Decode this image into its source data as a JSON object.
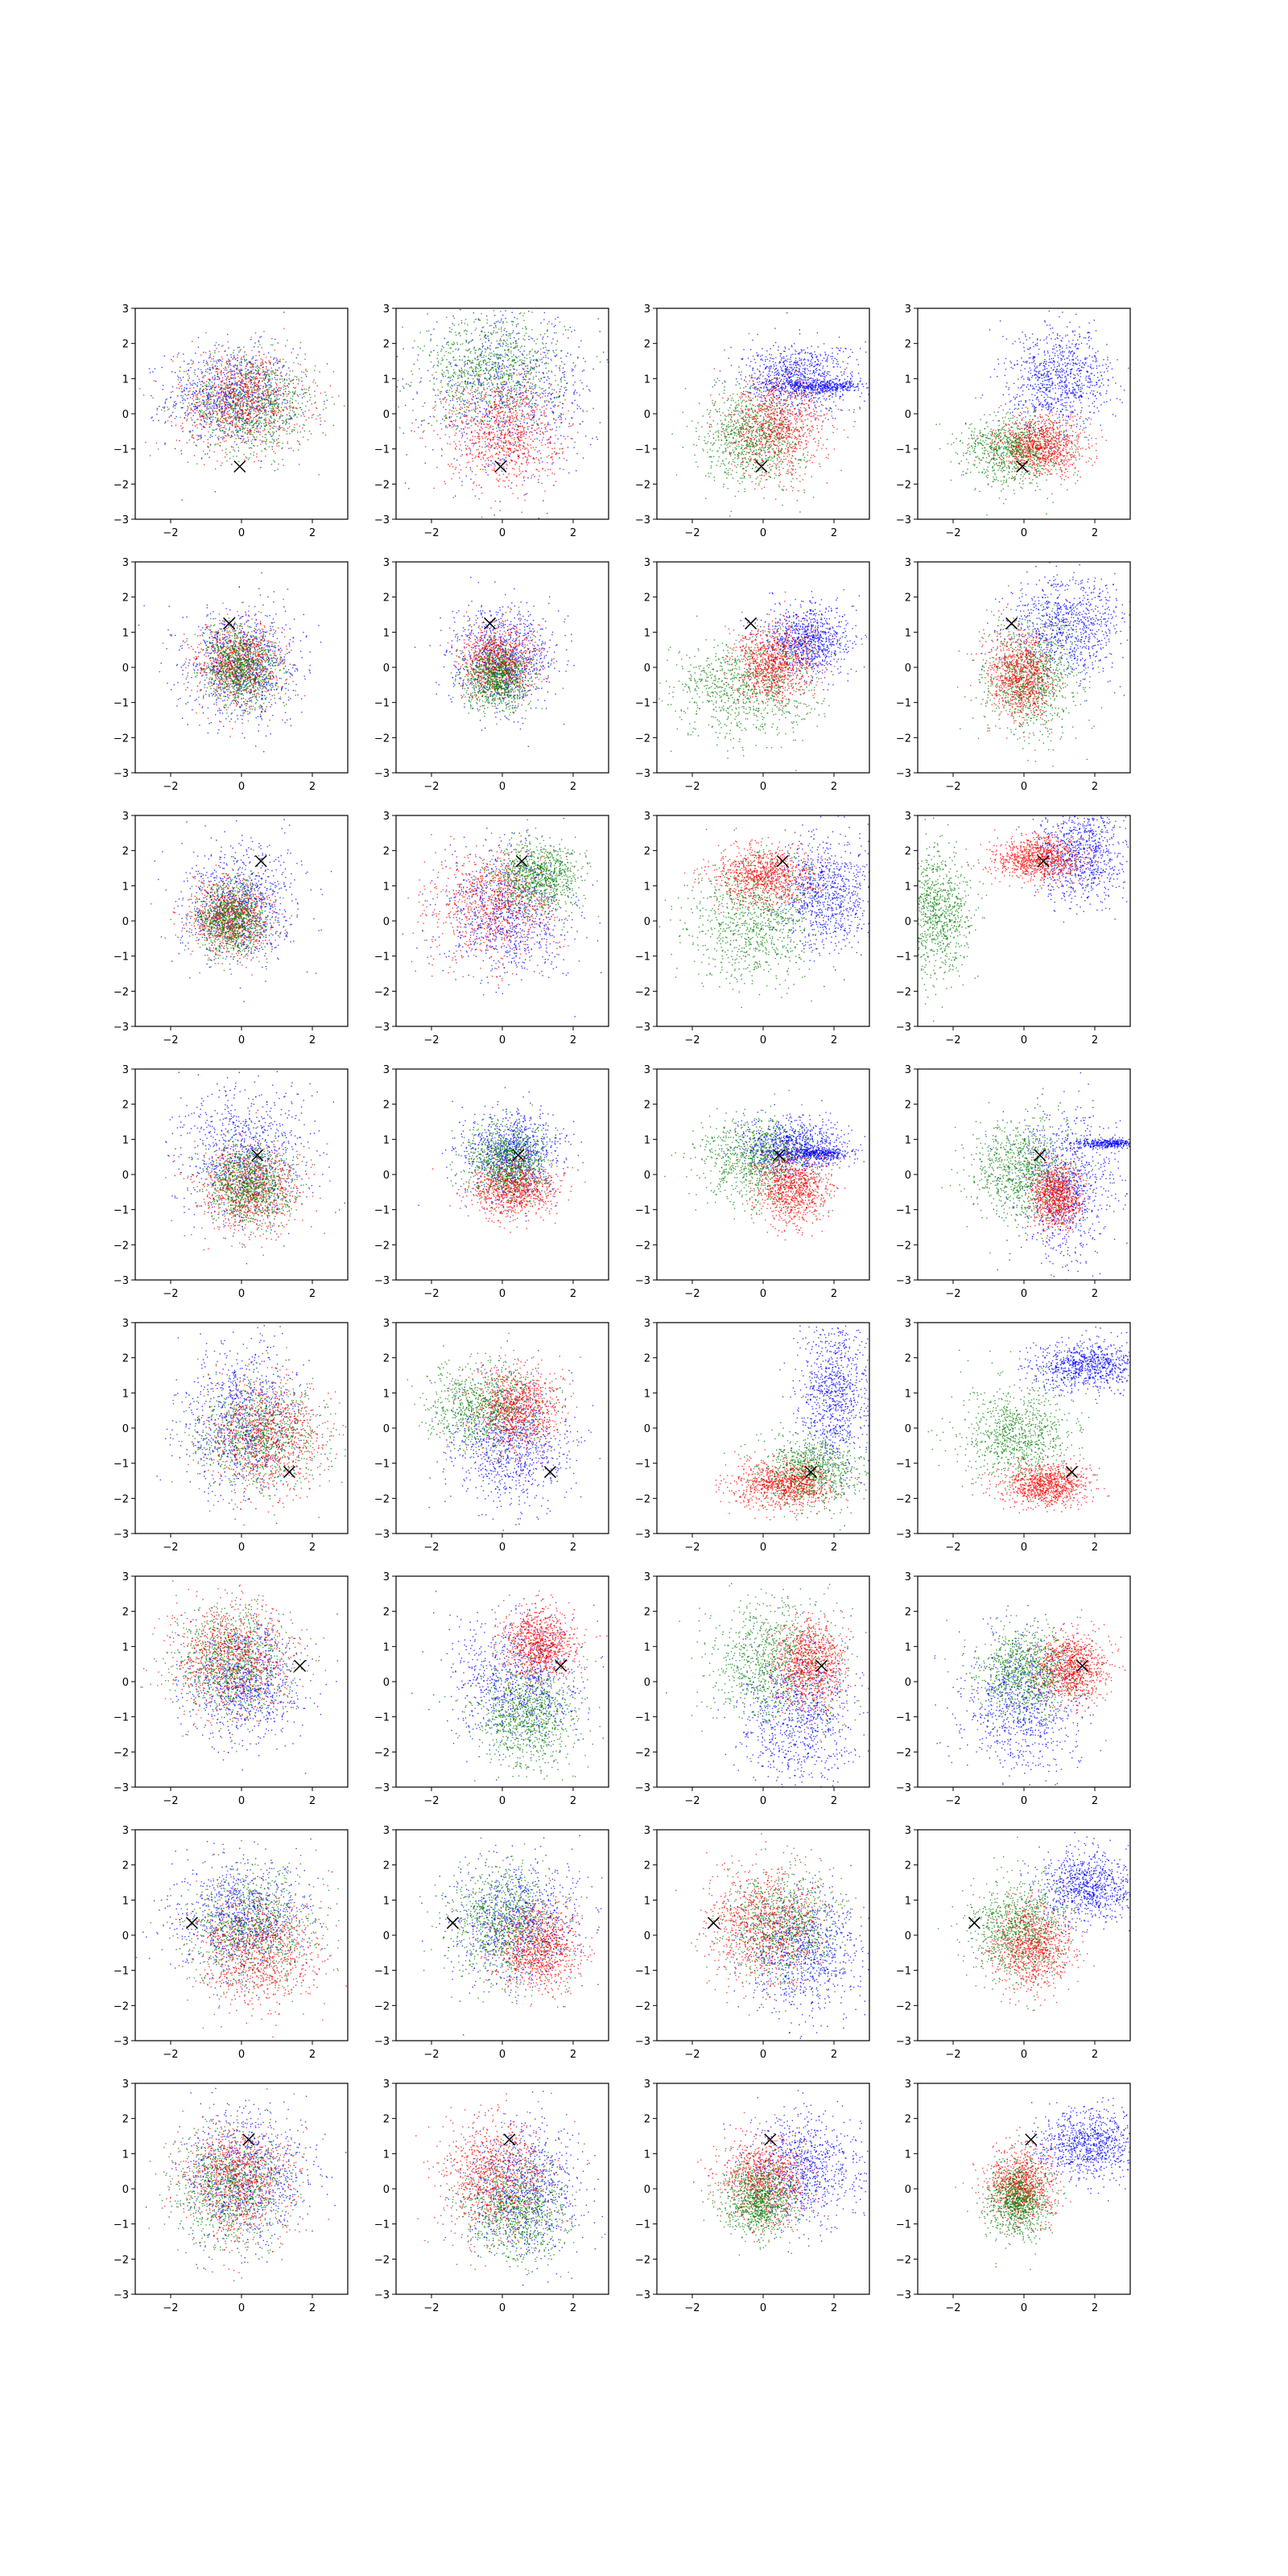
{
  "chart_data": {
    "type": "scatter",
    "layout": {
      "rows": 8,
      "cols": 4
    },
    "xlim": [
      -3,
      3
    ],
    "ylim": [
      -3,
      3
    ],
    "xticks": [
      -2,
      0,
      2
    ],
    "yticks": [
      -3,
      -2,
      -1,
      0,
      1,
      2,
      3
    ],
    "xtick_labels": [
      "−2",
      "0",
      "2"
    ],
    "ytick_labels": [
      "−3",
      "−2",
      "−1",
      "0",
      "1",
      "2",
      "3"
    ],
    "grid": false,
    "legend": "none",
    "series_colors": {
      "red": "#ff0000",
      "green": "#008000",
      "blue": "#0000ff"
    },
    "marker": {
      "symbol": "x",
      "color": "#000000"
    },
    "rows": [
      {
        "marker": [
          -0.05,
          -1.5
        ],
        "panels": [
          [
            {
              "c": "blue",
              "mx": -0.3,
              "my": 0.5,
              "sx": 0.9,
              "sy": 0.7
            },
            {
              "c": "green",
              "mx": 0.3,
              "my": 0.3,
              "sx": 0.9,
              "sy": 0.7
            },
            {
              "c": "red",
              "mx": 0.0,
              "my": 0.4,
              "sx": 0.9,
              "sy": 0.7
            }
          ],
          [
            {
              "c": "blue",
              "mx": 0.2,
              "my": 0.6,
              "sx": 1.2,
              "sy": 1.1
            },
            {
              "c": "green",
              "mx": -0.3,
              "my": 1.2,
              "sx": 1.0,
              "sy": 0.8
            },
            {
              "c": "red",
              "mx": 0.0,
              "my": -0.5,
              "sx": 0.8,
              "sy": 0.8
            }
          ],
          [
            {
              "c": "blue",
              "mx": 1.0,
              "my": 1.0,
              "sx": 0.8,
              "sy": 0.5
            },
            {
              "c": "blue",
              "mx": 1.6,
              "my": 0.8,
              "sx": 0.7,
              "sy": 0.08
            },
            {
              "c": "green",
              "mx": -0.3,
              "my": -0.6,
              "sx": 0.7,
              "sy": 0.7
            },
            {
              "c": "red",
              "mx": 0.4,
              "my": -0.4,
              "sx": 0.7,
              "sy": 0.7
            }
          ],
          [
            {
              "c": "blue",
              "mx": 1.0,
              "my": 1.0,
              "sx": 0.7,
              "sy": 0.7
            },
            {
              "c": "green",
              "mx": -0.3,
              "my": -1.0,
              "sx": 0.7,
              "sy": 0.5
            },
            {
              "c": "red",
              "mx": 0.5,
              "my": -0.9,
              "sx": 0.6,
              "sy": 0.4
            }
          ]
        ]
      },
      {
        "marker": [
          -0.35,
          1.25
        ],
        "panels": [
          [
            {
              "c": "blue",
              "mx": 0.0,
              "my": 0.1,
              "sx": 0.8,
              "sy": 0.8
            },
            {
              "c": "red",
              "mx": -0.1,
              "my": 0.1,
              "sx": 0.6,
              "sy": 0.6
            },
            {
              "c": "green",
              "mx": 0.0,
              "my": 0.0,
              "sx": 0.55,
              "sy": 0.55
            }
          ],
          [
            {
              "c": "blue",
              "mx": 0.0,
              "my": 0.3,
              "sx": 0.7,
              "sy": 0.7
            },
            {
              "c": "red",
              "mx": -0.1,
              "my": 0.2,
              "sx": 0.55,
              "sy": 0.5
            },
            {
              "c": "green",
              "mx": -0.2,
              "my": -0.3,
              "sx": 0.45,
              "sy": 0.45
            }
          ],
          [
            {
              "c": "blue",
              "mx": 1.2,
              "my": 0.8,
              "sx": 0.6,
              "sy": 0.5
            },
            {
              "c": "green",
              "mx": -0.5,
              "my": -0.6,
              "sx": 1.0,
              "sy": 0.7
            },
            {
              "c": "red",
              "mx": 0.3,
              "my": 0.1,
              "sx": 0.55,
              "sy": 0.55
            }
          ],
          [
            {
              "c": "blue",
              "mx": 1.2,
              "my": 1.2,
              "sx": 0.8,
              "sy": 0.7
            },
            {
              "c": "green",
              "mx": 0.2,
              "my": -0.3,
              "sx": 0.7,
              "sy": 0.8
            },
            {
              "c": "red",
              "mx": -0.1,
              "my": -0.2,
              "sx": 0.45,
              "sy": 0.6
            }
          ]
        ]
      },
      {
        "marker": [
          0.55,
          1.7
        ],
        "panels": [
          [
            {
              "c": "blue",
              "mx": -0.1,
              "my": 0.5,
              "sx": 0.8,
              "sy": 0.8
            },
            {
              "c": "red",
              "mx": -0.3,
              "my": 0.1,
              "sx": 0.55,
              "sy": 0.55
            },
            {
              "c": "green",
              "mx": -0.3,
              "my": 0.0,
              "sx": 0.5,
              "sy": 0.5
            }
          ],
          [
            {
              "c": "blue",
              "mx": 0.2,
              "my": 0.2,
              "sx": 0.9,
              "sy": 0.9
            },
            {
              "c": "red",
              "mx": -0.2,
              "my": 0.5,
              "sx": 0.9,
              "sy": 0.8
            },
            {
              "c": "green",
              "mx": 1.0,
              "my": 1.3,
              "sx": 0.6,
              "sy": 0.5
            }
          ],
          [
            {
              "c": "blue",
              "mx": 1.8,
              "my": 0.8,
              "sx": 0.7,
              "sy": 0.8
            },
            {
              "c": "green",
              "mx": -0.3,
              "my": 0.0,
              "sx": 0.9,
              "sy": 0.9
            },
            {
              "c": "red",
              "mx": 0.0,
              "my": 1.3,
              "sx": 0.7,
              "sy": 0.4
            }
          ],
          [
            {
              "c": "blue",
              "mx": 1.6,
              "my": 2.0,
              "sx": 0.6,
              "sy": 0.7
            },
            {
              "c": "red",
              "mx": 0.4,
              "my": 1.8,
              "sx": 0.6,
              "sy": 0.3
            },
            {
              "c": "green",
              "mx": -2.5,
              "my": 0.2,
              "sx": 0.5,
              "sy": 0.9
            }
          ]
        ]
      },
      {
        "marker": [
          0.45,
          0.55
        ],
        "panels": [
          [
            {
              "c": "blue",
              "mx": 0.1,
              "my": 0.5,
              "sx": 0.9,
              "sy": 0.9
            },
            {
              "c": "red",
              "mx": 0.2,
              "my": -0.4,
              "sx": 0.7,
              "sy": 0.6
            },
            {
              "c": "green",
              "mx": 0.2,
              "my": -0.3,
              "sx": 0.6,
              "sy": 0.6
            }
          ],
          [
            {
              "c": "blue",
              "mx": 0.3,
              "my": 0.6,
              "sx": 0.7,
              "sy": 0.6
            },
            {
              "c": "red",
              "mx": 0.3,
              "my": -0.4,
              "sx": 0.6,
              "sy": 0.4
            },
            {
              "c": "green",
              "mx": 0.1,
              "my": 0.4,
              "sx": 0.55,
              "sy": 0.5
            }
          ],
          [
            {
              "c": "blue",
              "mx": 0.8,
              "my": 0.8,
              "sx": 0.7,
              "sy": 0.4
            },
            {
              "c": "blue",
              "mx": 1.5,
              "my": 0.6,
              "sx": 0.5,
              "sy": 0.08
            },
            {
              "c": "green",
              "mx": -0.2,
              "my": 0.4,
              "sx": 0.8,
              "sy": 0.6
            },
            {
              "c": "red",
              "mx": 0.8,
              "my": -0.4,
              "sx": 0.5,
              "sy": 0.5
            }
          ],
          [
            {
              "c": "blue",
              "mx": 1.2,
              "my": -0.3,
              "sx": 0.7,
              "sy": 1.0
            },
            {
              "c": "blue",
              "mx": 2.3,
              "my": 0.9,
              "sx": 0.5,
              "sy": 0.07
            },
            {
              "c": "green",
              "mx": -0.1,
              "my": 0.1,
              "sx": 0.7,
              "sy": 0.7
            },
            {
              "c": "red",
              "mx": 0.9,
              "my": -0.6,
              "sx": 0.35,
              "sy": 0.45
            }
          ]
        ]
      },
      {
        "marker": [
          1.35,
          -1.25
        ],
        "panels": [
          [
            {
              "c": "blue",
              "mx": 0.0,
              "my": 0.2,
              "sx": 0.8,
              "sy": 1.0
            },
            {
              "c": "green",
              "mx": 0.5,
              "my": -0.2,
              "sx": 0.9,
              "sy": 0.8
            },
            {
              "c": "red",
              "mx": 0.7,
              "my": -0.2,
              "sx": 0.8,
              "sy": 0.8
            }
          ],
          [
            {
              "c": "blue",
              "mx": 0.2,
              "my": -0.5,
              "sx": 0.8,
              "sy": 0.9
            },
            {
              "c": "green",
              "mx": -0.5,
              "my": 0.6,
              "sx": 0.8,
              "sy": 0.6
            },
            {
              "c": "red",
              "mx": 0.4,
              "my": 0.6,
              "sx": 0.6,
              "sy": 0.6
            }
          ],
          [
            {
              "c": "blue",
              "mx": 2.0,
              "my": 1.0,
              "sx": 0.5,
              "sy": 1.1
            },
            {
              "c": "green",
              "mx": 1.3,
              "my": -1.2,
              "sx": 0.7,
              "sy": 0.5
            },
            {
              "c": "red",
              "mx": 0.6,
              "my": -1.6,
              "sx": 0.7,
              "sy": 0.35
            }
          ],
          [
            {
              "c": "blue",
              "mx": 1.8,
              "my": 1.8,
              "sx": 0.8,
              "sy": 0.35
            },
            {
              "c": "green",
              "mx": -0.2,
              "my": -0.2,
              "sx": 0.8,
              "sy": 0.7
            },
            {
              "c": "red",
              "mx": 0.6,
              "my": -1.6,
              "sx": 0.6,
              "sy": 0.3
            }
          ]
        ]
      },
      {
        "marker": [
          1.65,
          0.45
        ],
        "panels": [
          [
            {
              "c": "blue",
              "mx": 0.1,
              "my": 0.0,
              "sx": 0.8,
              "sy": 0.8
            },
            {
              "c": "green",
              "mx": -0.3,
              "my": 0.6,
              "sx": 0.8,
              "sy": 0.8
            },
            {
              "c": "red",
              "mx": -0.3,
              "my": 0.7,
              "sx": 0.8,
              "sy": 0.8
            }
          ],
          [
            {
              "c": "blue",
              "mx": 0.4,
              "my": 0.0,
              "sx": 0.9,
              "sy": 0.9
            },
            {
              "c": "green",
              "mx": 0.7,
              "my": -1.0,
              "sx": 0.7,
              "sy": 0.7
            },
            {
              "c": "red",
              "mx": 1.0,
              "my": 1.1,
              "sx": 0.5,
              "sy": 0.5
            }
          ],
          [
            {
              "c": "blue",
              "mx": 1.0,
              "my": -1.0,
              "sx": 0.8,
              "sy": 1.0
            },
            {
              "c": "green",
              "mx": 0.3,
              "my": 0.6,
              "sx": 0.9,
              "sy": 0.9
            },
            {
              "c": "red",
              "mx": 1.3,
              "my": 0.5,
              "sx": 0.5,
              "sy": 0.6
            }
          ],
          [
            {
              "c": "blue",
              "mx": -0.1,
              "my": -0.6,
              "sx": 0.8,
              "sy": 1.0
            },
            {
              "c": "green",
              "mx": 0.1,
              "my": 0.3,
              "sx": 0.7,
              "sy": 0.6
            },
            {
              "c": "red",
              "mx": 1.3,
              "my": 0.4,
              "sx": 0.5,
              "sy": 0.5
            }
          ]
        ]
      },
      {
        "marker": [
          -1.4,
          0.35
        ],
        "panels": [
          [
            {
              "c": "blue",
              "mx": 0.0,
              "my": 0.5,
              "sx": 0.9,
              "sy": 0.8
            },
            {
              "c": "green",
              "mx": 0.3,
              "my": 0.2,
              "sx": 0.9,
              "sy": 0.8
            },
            {
              "c": "red",
              "mx": 0.4,
              "my": -0.4,
              "sx": 0.9,
              "sy": 0.8
            }
          ],
          [
            {
              "c": "blue",
              "mx": 0.4,
              "my": 0.4,
              "sx": 0.9,
              "sy": 0.9
            },
            {
              "c": "green",
              "mx": 0.0,
              "my": 0.4,
              "sx": 0.8,
              "sy": 0.8
            },
            {
              "c": "red",
              "mx": 1.0,
              "my": -0.3,
              "sx": 0.6,
              "sy": 0.6
            }
          ],
          [
            {
              "c": "blue",
              "mx": 1.2,
              "my": -0.5,
              "sx": 0.9,
              "sy": 0.9
            },
            {
              "c": "green",
              "mx": 0.5,
              "my": 0.3,
              "sx": 0.8,
              "sy": 0.8
            },
            {
              "c": "red",
              "mx": 0.0,
              "my": 0.3,
              "sx": 0.8,
              "sy": 0.8
            }
          ],
          [
            {
              "c": "blue",
              "mx": 1.8,
              "my": 1.4,
              "sx": 0.7,
              "sy": 0.5
            },
            {
              "c": "green",
              "mx": -0.2,
              "my": 0.2,
              "sx": 0.7,
              "sy": 0.7
            },
            {
              "c": "red",
              "mx": 0.2,
              "my": -0.3,
              "sx": 0.6,
              "sy": 0.6
            }
          ]
        ]
      },
      {
        "marker": [
          0.2,
          1.4
        ],
        "panels": [
          [
            {
              "c": "blue",
              "mx": 0.1,
              "my": 0.4,
              "sx": 0.9,
              "sy": 0.9
            },
            {
              "c": "green",
              "mx": -0.3,
              "my": 0.0,
              "sx": 0.8,
              "sy": 0.8
            },
            {
              "c": "red",
              "mx": -0.1,
              "my": 0.3,
              "sx": 0.8,
              "sy": 0.8
            }
          ],
          [
            {
              "c": "blue",
              "mx": 0.6,
              "my": 0.0,
              "sx": 0.8,
              "sy": 0.9
            },
            {
              "c": "green",
              "mx": 0.4,
              "my": -0.6,
              "sx": 0.7,
              "sy": 0.7
            },
            {
              "c": "red",
              "mx": -0.2,
              "my": 0.4,
              "sx": 0.8,
              "sy": 0.8
            }
          ],
          [
            {
              "c": "blue",
              "mx": 1.2,
              "my": 0.6,
              "sx": 0.8,
              "sy": 0.8
            },
            {
              "c": "red",
              "mx": 0.0,
              "my": 0.3,
              "sx": 0.6,
              "sy": 0.6
            },
            {
              "c": "green",
              "mx": -0.1,
              "my": -0.3,
              "sx": 0.5,
              "sy": 0.5
            }
          ],
          [
            {
              "c": "blue",
              "mx": 1.8,
              "my": 1.3,
              "sx": 0.7,
              "sy": 0.5
            },
            {
              "c": "red",
              "mx": -0.1,
              "my": 0.1,
              "sx": 0.45,
              "sy": 0.5
            },
            {
              "c": "green",
              "mx": -0.2,
              "my": -0.3,
              "sx": 0.45,
              "sy": 0.5
            }
          ]
        ]
      }
    ]
  }
}
